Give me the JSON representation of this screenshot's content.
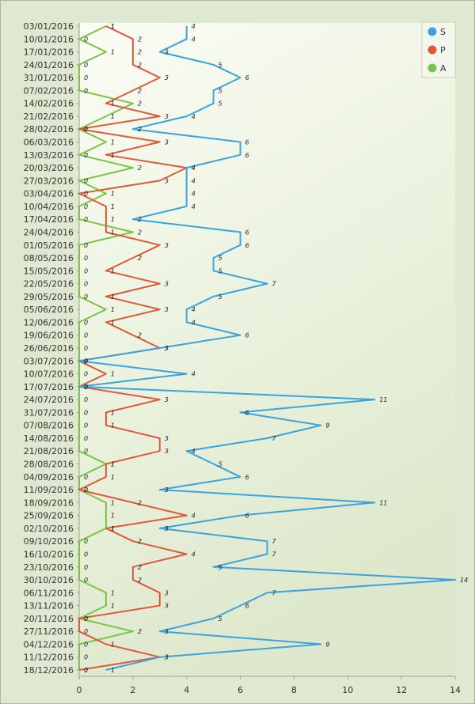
{
  "chart_data": {
    "type": "line",
    "orientation": "vertical-categories",
    "categories": [
      "03/01/2016",
      "10/01/2016",
      "17/01/2016",
      "24/01/2016",
      "31/01/2016",
      "07/02/2016",
      "14/02/2016",
      "21/02/2016",
      "28/02/2016",
      "06/03/2016",
      "13/03/2016",
      "20/03/2016",
      "27/03/2016",
      "03/04/2016",
      "10/04/2016",
      "17/04/2016",
      "24/04/2016",
      "01/05/2016",
      "08/05/2016",
      "15/05/2016",
      "22/05/2016",
      "29/05/2016",
      "05/06/2016",
      "12/06/2016",
      "19/06/2016",
      "26/06/2016",
      "03/07/2016",
      "10/07/2016",
      "17/07/2016",
      "24/07/2016",
      "31/07/2016",
      "07/08/2016",
      "14/08/2016",
      "21/08/2016",
      "28/08/2016",
      "04/09/2016",
      "11/09/2016",
      "18/09/2016",
      "25/09/2016",
      "02/10/2016",
      "09/10/2016",
      "16/10/2016",
      "23/10/2016",
      "30/10/2016",
      "06/11/2016",
      "13/11/2016",
      "20/11/2016",
      "27/11/2016",
      "04/12/2016",
      "11/12/2016",
      "18/12/2016"
    ],
    "series": [
      {
        "name": "S",
        "color": "#3aa3dd",
        "values": [
          4,
          4,
          3,
          5,
          6,
          5,
          5,
          4,
          2,
          6,
          6,
          4,
          4,
          4,
          4,
          2,
          6,
          6,
          5,
          5,
          7,
          5,
          4,
          4,
          6,
          3,
          0,
          4,
          0,
          11,
          6,
          9,
          7,
          4,
          5,
          6,
          3,
          11,
          6,
          3,
          7,
          7,
          5,
          14,
          7,
          6,
          5,
          3,
          9,
          3,
          1
        ]
      },
      {
        "name": "P",
        "color": "#dd5a3a",
        "values": [
          1,
          2,
          2,
          2,
          3,
          2,
          1,
          3,
          0,
          3,
          1,
          4,
          3,
          0,
          1,
          1,
          1,
          3,
          2,
          1,
          3,
          1,
          3,
          1,
          2,
          3,
          0,
          1,
          0,
          3,
          1,
          1,
          3,
          3,
          1,
          1,
          0,
          2,
          4,
          1,
          2,
          4,
          2,
          2,
          3,
          3,
          0,
          0,
          1,
          3,
          0
        ]
      },
      {
        "name": "A",
        "color": "#7cc34a",
        "values": [
          1,
          0,
          1,
          0,
          0,
          0,
          2,
          1,
          0,
          1,
          0,
          2,
          0,
          1,
          0,
          0,
          2,
          0,
          0,
          0,
          0,
          0,
          1,
          0,
          0,
          0,
          0,
          0,
          0,
          0,
          0,
          0,
          0,
          0,
          1,
          0,
          0,
          1,
          1,
          1,
          0,
          0,
          0,
          0,
          1,
          1,
          0,
          2,
          0,
          0,
          0
        ]
      }
    ],
    "x_axis": {
      "min": 0,
      "max": 14,
      "ticks": [
        0,
        2,
        4,
        6,
        8,
        10,
        12,
        14
      ]
    },
    "grid": false,
    "legend_position": "top-right",
    "data_labels": true
  }
}
